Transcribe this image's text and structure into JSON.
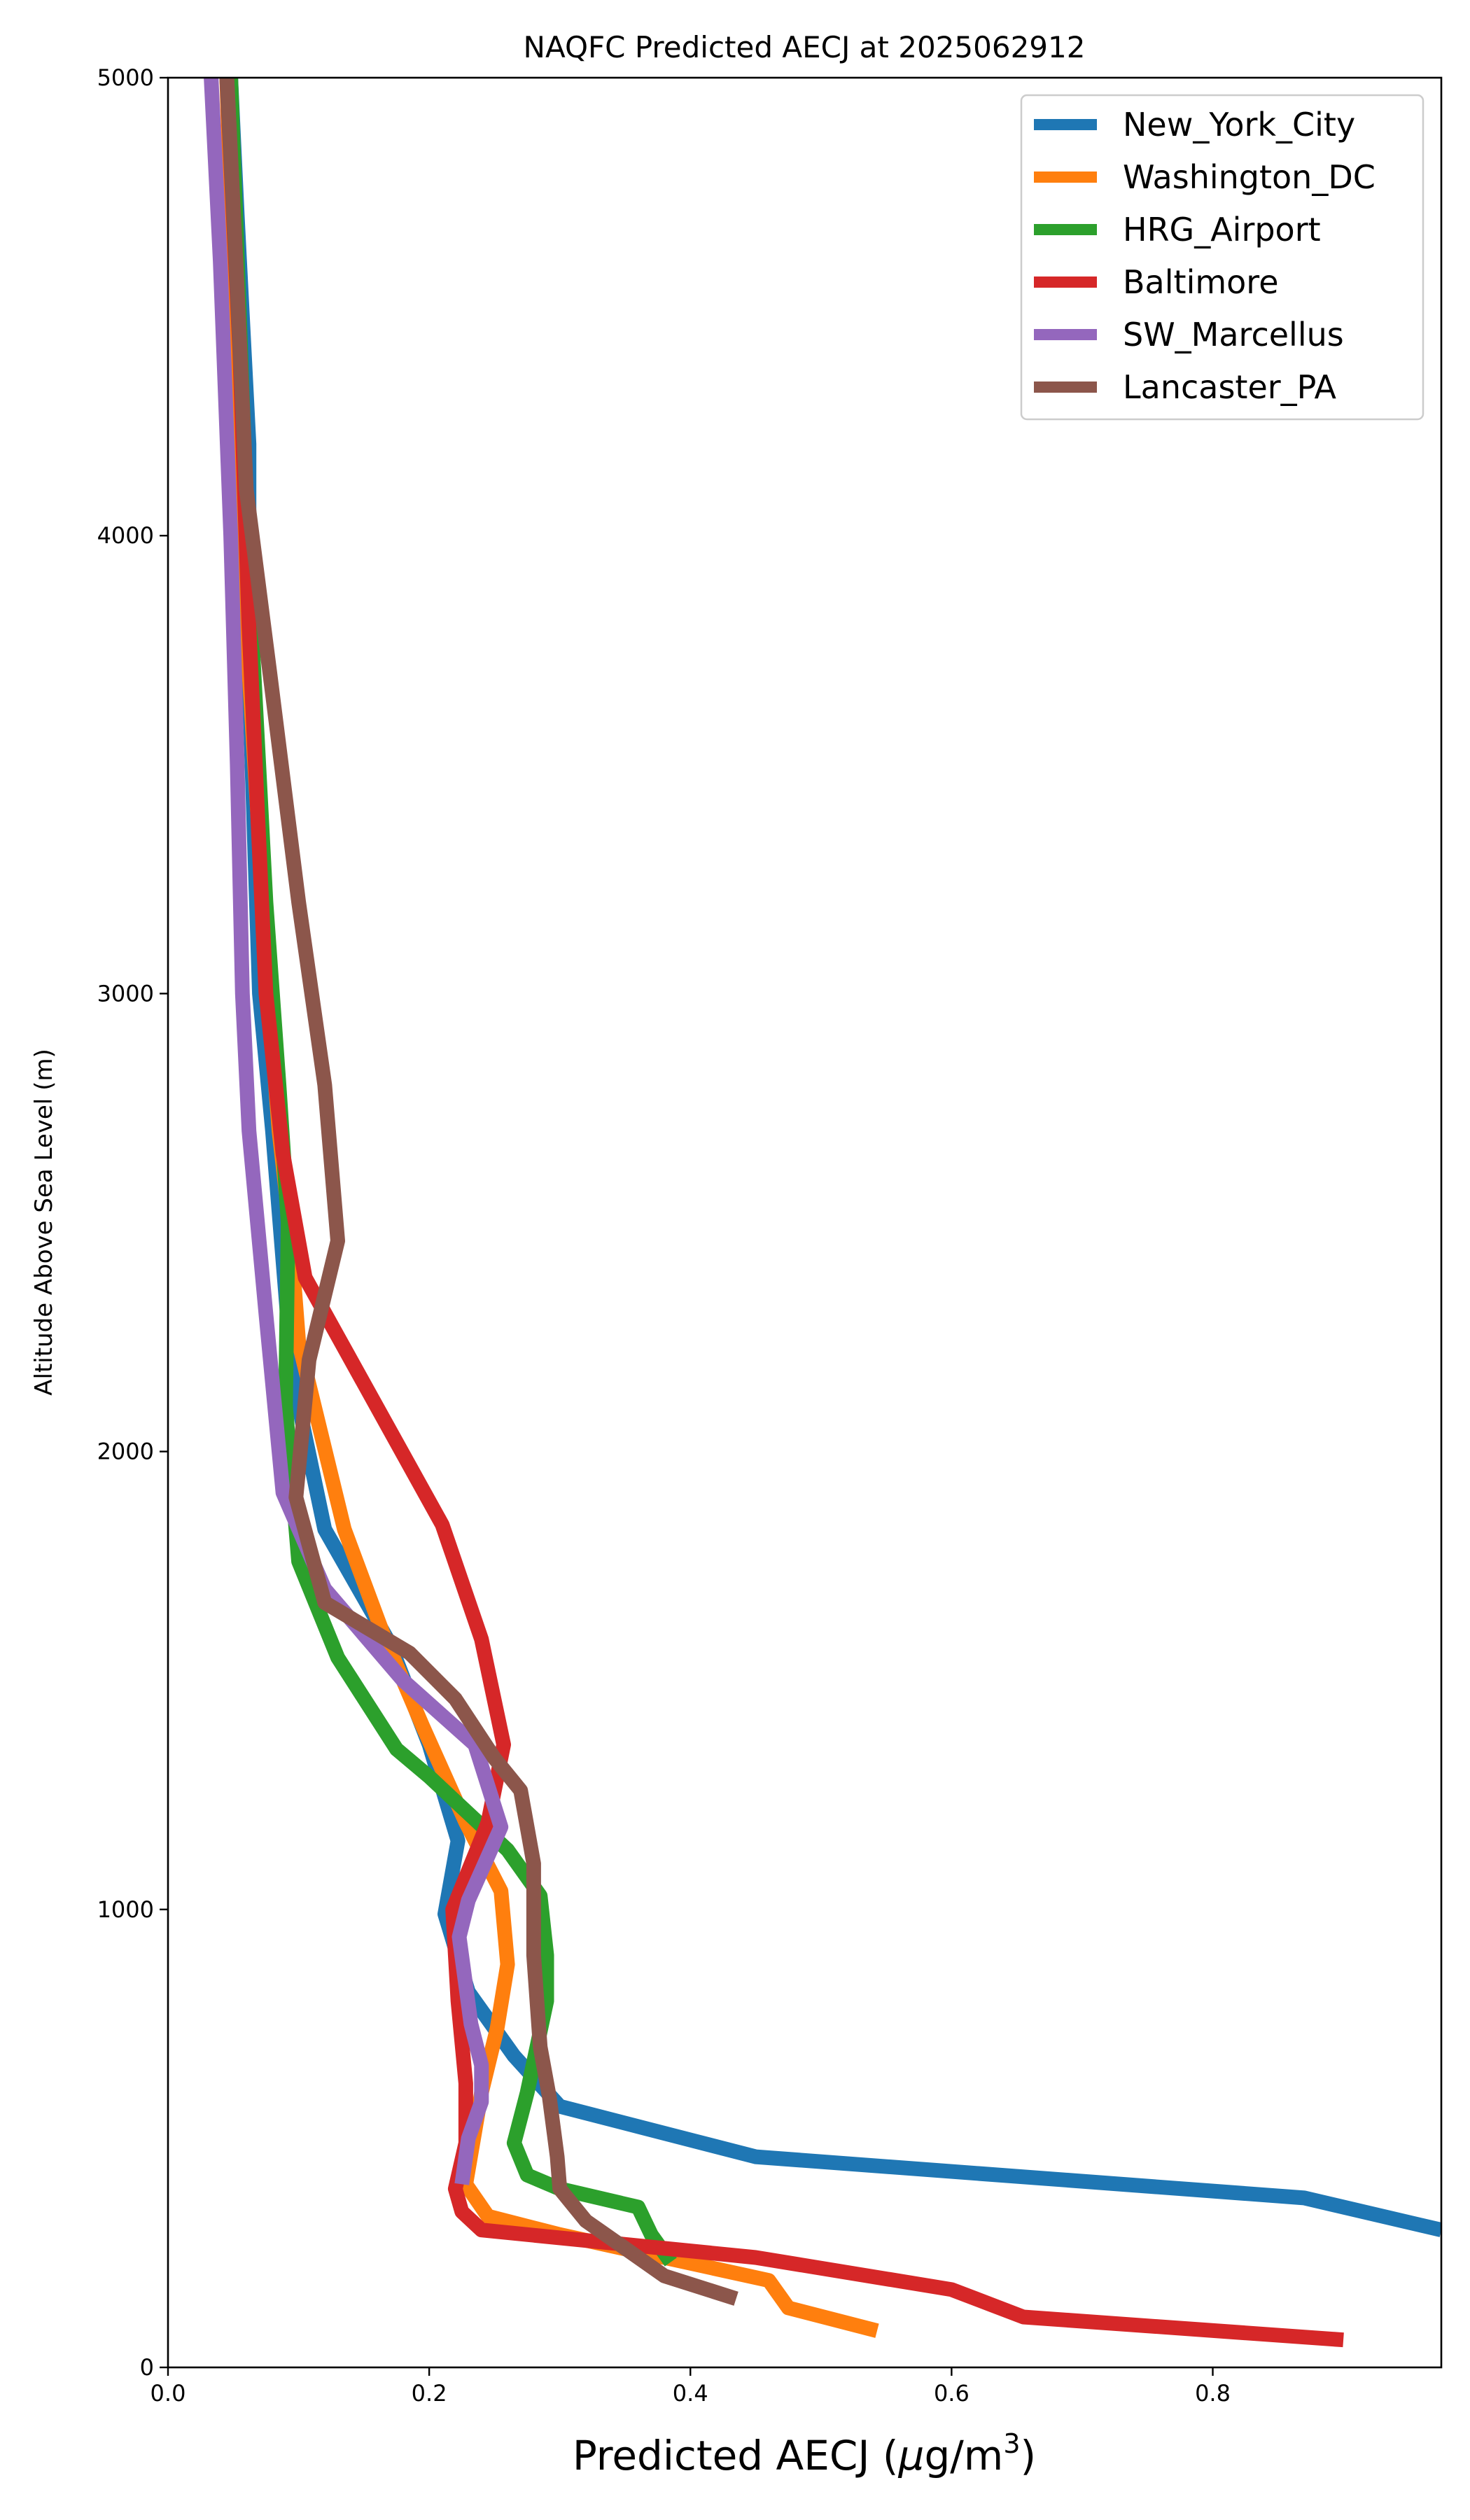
{
  "chart_data": {
    "type": "line",
    "title": "NAQFC Predicted AECJ at 2025062912",
    "xlabel_main": "Predicted AECJ (",
    "xlabel_mu": "μ",
    "xlabel_unit": "g/m",
    "xlabel_exp": "3",
    "xlabel_close": ")",
    "ylabel": "Altitude Above Sea Level (m)",
    "xlim": [
      0.0,
      0.975
    ],
    "ylim": [
      0,
      5000
    ],
    "xticks": [
      "0.0",
      "0.2",
      "0.4",
      "0.6",
      "0.8"
    ],
    "xtick_values": [
      0.0,
      0.2,
      0.4,
      0.6,
      0.8
    ],
    "yticks": [
      "0",
      "1000",
      "2000",
      "3000",
      "4000",
      "5000"
    ],
    "ytick_values": [
      0,
      1000,
      2000,
      3000,
      4000,
      5000
    ],
    "grid": false,
    "legend_position": "top-right",
    "series": [
      {
        "name": "New_York_City",
        "color": "#1f77b4",
        "points": [
          [
            0.975,
            300
          ],
          [
            0.87,
            370
          ],
          [
            0.45,
            460
          ],
          [
            0.3,
            570
          ],
          [
            0.265,
            680
          ],
          [
            0.23,
            820
          ],
          [
            0.212,
            990
          ],
          [
            0.222,
            1150
          ],
          [
            0.2,
            1360
          ],
          [
            0.17,
            1580
          ],
          [
            0.12,
            1830
          ],
          [
            0.095,
            2170
          ],
          [
            0.08,
            2700
          ],
          [
            0.07,
            3000
          ],
          [
            0.062,
            3700
          ],
          [
            0.062,
            4200
          ],
          [
            0.053,
            4700
          ],
          [
            0.048,
            5000
          ]
        ]
      },
      {
        "name": "Washington_DC",
        "color": "#ff7f0e",
        "points": [
          [
            0.543,
            80
          ],
          [
            0.475,
            130
          ],
          [
            0.46,
            190
          ],
          [
            0.3,
            290
          ],
          [
            0.245,
            330
          ],
          [
            0.228,
            400
          ],
          [
            0.24,
            600
          ],
          [
            0.252,
            740
          ],
          [
            0.26,
            880
          ],
          [
            0.255,
            1040
          ],
          [
            0.228,
            1190
          ],
          [
            0.195,
            1400
          ],
          [
            0.165,
            1600
          ],
          [
            0.135,
            1830
          ],
          [
            0.1,
            2240
          ],
          [
            0.093,
            2500
          ],
          [
            0.085,
            2700
          ],
          [
            0.077,
            3000
          ],
          [
            0.06,
            3800
          ],
          [
            0.05,
            4500
          ],
          [
            0.045,
            5000
          ]
        ]
      },
      {
        "name": "HRG_Airport",
        "color": "#2ca02c",
        "points": [
          [
            0.385,
            230
          ],
          [
            0.37,
            290
          ],
          [
            0.36,
            350
          ],
          [
            0.3,
            390
          ],
          [
            0.275,
            420
          ],
          [
            0.265,
            490
          ],
          [
            0.275,
            600
          ],
          [
            0.29,
            800
          ],
          [
            0.29,
            900
          ],
          [
            0.285,
            1030
          ],
          [
            0.26,
            1130
          ],
          [
            0.2,
            1290
          ],
          [
            0.175,
            1350
          ],
          [
            0.13,
            1550
          ],
          [
            0.1,
            1760
          ],
          [
            0.09,
            2100
          ],
          [
            0.092,
            2500
          ],
          [
            0.085,
            2800
          ],
          [
            0.075,
            3200
          ],
          [
            0.064,
            3800
          ],
          [
            0.057,
            4300
          ],
          [
            0.048,
            5000
          ]
        ]
      },
      {
        "name": "Baltimore",
        "color": "#d62728",
        "points": [
          [
            0.9,
            60
          ],
          [
            0.655,
            110
          ],
          [
            0.6,
            170
          ],
          [
            0.45,
            240
          ],
          [
            0.24,
            300
          ],
          [
            0.225,
            340
          ],
          [
            0.22,
            390
          ],
          [
            0.228,
            490
          ],
          [
            0.228,
            620
          ],
          [
            0.222,
            800
          ],
          [
            0.218,
            1000
          ],
          [
            0.245,
            1190
          ],
          [
            0.257,
            1360
          ],
          [
            0.24,
            1590
          ],
          [
            0.21,
            1840
          ],
          [
            0.105,
            2380
          ],
          [
            0.088,
            2650
          ],
          [
            0.075,
            3000
          ],
          [
            0.062,
            3800
          ],
          [
            0.055,
            4400
          ],
          [
            0.045,
            5000
          ]
        ]
      },
      {
        "name": "SW_Marcellus",
        "color": "#9467bd",
        "points": [
          [
            0.225,
            400
          ],
          [
            0.23,
            500
          ],
          [
            0.24,
            580
          ],
          [
            0.24,
            660
          ],
          [
            0.232,
            750
          ],
          [
            0.223,
            940
          ],
          [
            0.23,
            1020
          ],
          [
            0.255,
            1180
          ],
          [
            0.235,
            1360
          ],
          [
            0.18,
            1500
          ],
          [
            0.12,
            1700
          ],
          [
            0.088,
            1910
          ],
          [
            0.075,
            2300
          ],
          [
            0.062,
            2700
          ],
          [
            0.057,
            3000
          ],
          [
            0.053,
            3500
          ],
          [
            0.048,
            4000
          ],
          [
            0.04,
            4600
          ],
          [
            0.033,
            5000
          ]
        ]
      },
      {
        "name": "Lancaster_PA",
        "color": "#8c564b",
        "points": [
          [
            0.435,
            150
          ],
          [
            0.38,
            200
          ],
          [
            0.35,
            260
          ],
          [
            0.32,
            320
          ],
          [
            0.3,
            390
          ],
          [
            0.298,
            460
          ],
          [
            0.292,
            590
          ],
          [
            0.285,
            700
          ],
          [
            0.28,
            900
          ],
          [
            0.28,
            1100
          ],
          [
            0.27,
            1260
          ],
          [
            0.25,
            1330
          ],
          [
            0.22,
            1460
          ],
          [
            0.185,
            1560
          ],
          [
            0.12,
            1670
          ],
          [
            0.098,
            1900
          ],
          [
            0.108,
            2200
          ],
          [
            0.13,
            2460
          ],
          [
            0.12,
            2800
          ],
          [
            0.1,
            3200
          ],
          [
            0.078,
            3700
          ],
          [
            0.06,
            4100
          ],
          [
            0.052,
            4600
          ],
          [
            0.045,
            5000
          ]
        ]
      }
    ]
  }
}
